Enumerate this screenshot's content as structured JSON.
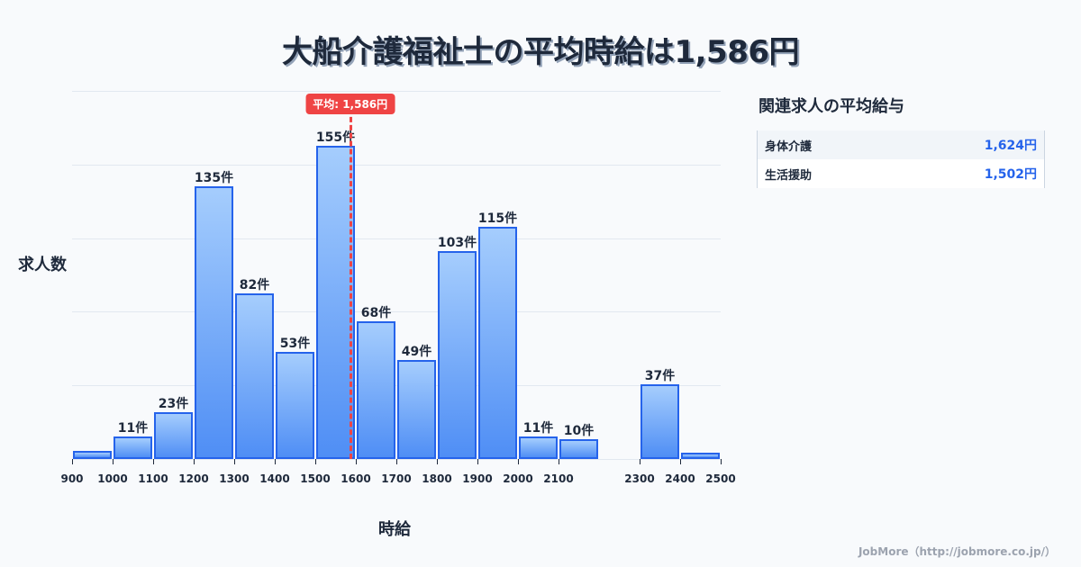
{
  "title": "大船介護福祉士の平均時給は1,586円",
  "chart_data": {
    "type": "bar",
    "title": "大船介護福祉士の平均時給は1,586円",
    "xlabel": "時給",
    "ylabel": "求人数",
    "bins": [
      {
        "from": 900,
        "to": 1000,
        "value": 4,
        "label": ""
      },
      {
        "from": 1000,
        "to": 1100,
        "value": 11,
        "label": "11件"
      },
      {
        "from": 1100,
        "to": 1200,
        "value": 23,
        "label": "23件"
      },
      {
        "from": 1200,
        "to": 1300,
        "value": 135,
        "label": "135件"
      },
      {
        "from": 1300,
        "to": 1400,
        "value": 82,
        "label": "82件"
      },
      {
        "from": 1400,
        "to": 1500,
        "value": 53,
        "label": "53件"
      },
      {
        "from": 1500,
        "to": 1600,
        "value": 155,
        "label": "155件"
      },
      {
        "from": 1600,
        "to": 1700,
        "value": 68,
        "label": "68件"
      },
      {
        "from": 1700,
        "to": 1800,
        "value": 49,
        "label": "49件"
      },
      {
        "from": 1800,
        "to": 1900,
        "value": 103,
        "label": "103件"
      },
      {
        "from": 1900,
        "to": 2000,
        "value": 115,
        "label": "115件"
      },
      {
        "from": 2000,
        "to": 2100,
        "value": 11,
        "label": "11件"
      },
      {
        "from": 2100,
        "to": 2200,
        "value": 10,
        "label": "10件"
      },
      {
        "from": 2200,
        "to": 2300,
        "value": 0,
        "label": ""
      },
      {
        "from": 2300,
        "to": 2400,
        "value": 37,
        "label": "37件"
      },
      {
        "from": 2400,
        "to": 2500,
        "value": 3,
        "label": ""
      }
    ],
    "x_ticks": [
      "900",
      "1000",
      "1100",
      "1200",
      "1300",
      "1400",
      "1500",
      "1600",
      "1700",
      "1800",
      "1900",
      "2000",
      "2100",
      "2300",
      "2400",
      "2500"
    ],
    "xlim": [
      900,
      2500
    ],
    "ylim": [
      0,
      182
    ],
    "grid": true,
    "mean": {
      "value": 1586,
      "label": "平均: 1,586円",
      "color": "#ef4444"
    },
    "bar_color": "#4f8ef5",
    "bar_border": "#2563eb"
  },
  "sidebar": {
    "title": "関連求人の平均給与",
    "rows": [
      {
        "name": "身体介護",
        "value": "1,624円"
      },
      {
        "name": "生活援助",
        "value": "1,502円"
      }
    ]
  },
  "footer": "JobMore（http://jobmore.co.jp/）"
}
